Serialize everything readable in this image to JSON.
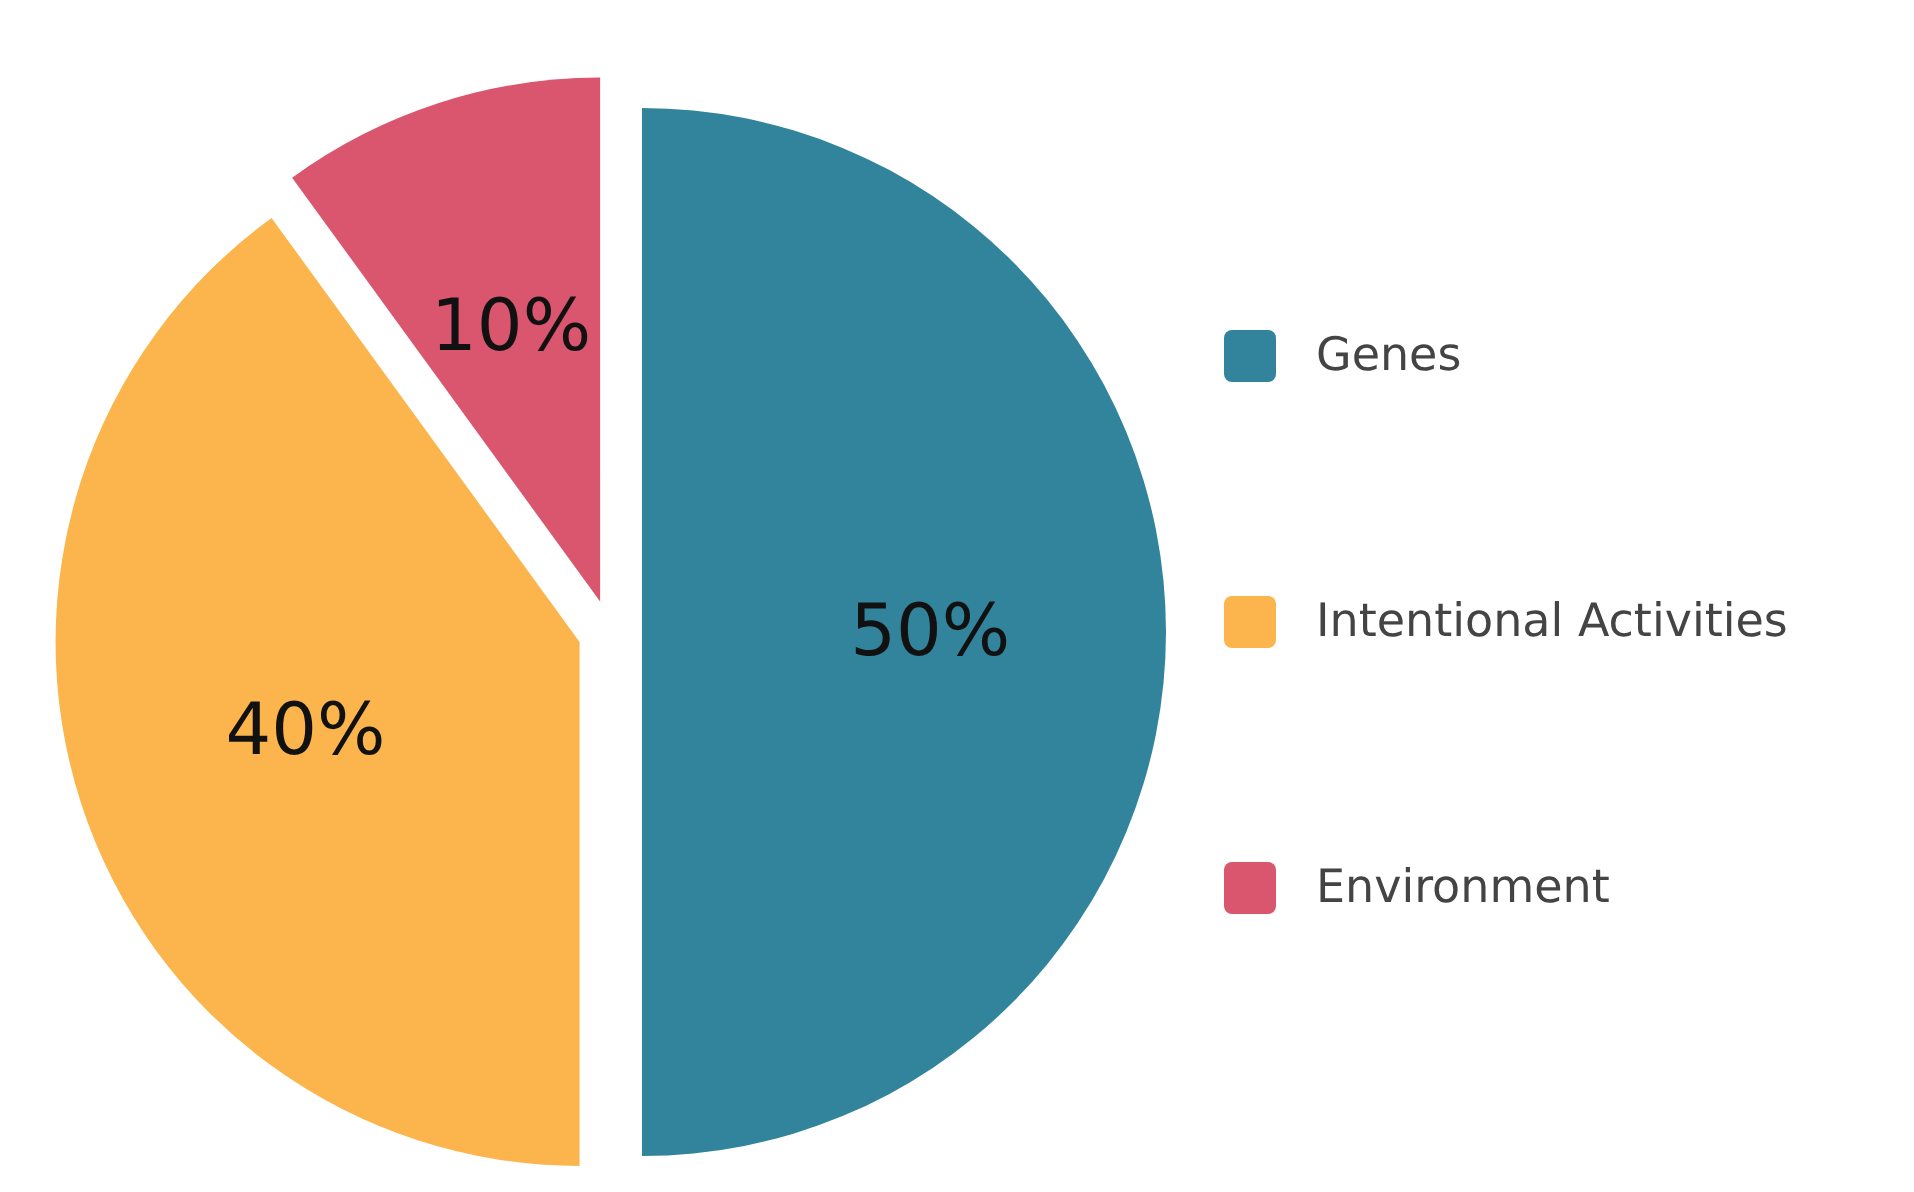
{
  "chart_data": {
    "type": "pie",
    "categories": [
      "Genes",
      "Intentional Activities",
      "Environment"
    ],
    "values": [
      50,
      40,
      10
    ],
    "colors": [
      "#31849b",
      "#fbb54c",
      "#d9566e"
    ],
    "value_labels": [
      "50%",
      "40%",
      "10%"
    ],
    "legend": "right"
  }
}
